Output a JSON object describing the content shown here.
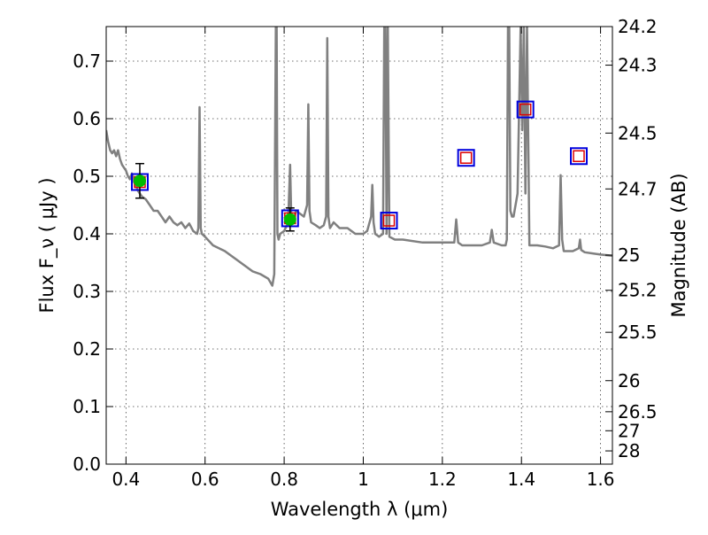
{
  "chart_data": {
    "type": "scatter",
    "title": "",
    "xlabel": "Wavelength  λ (μm)",
    "ylabel_left": "Flux  F_ν  ( μJy )",
    "ylabel_right": "Magnitude (AB)",
    "xlim": [
      0.35,
      1.63
    ],
    "ylim": [
      0.0,
      0.76
    ],
    "grid": true,
    "legend": "none",
    "colors": {
      "sed_line": "#808080",
      "observed_fill": "#00bb00",
      "model_box": "#0000dd",
      "model_inner": "#dd0000",
      "errorbar": "#000000"
    },
    "x_ticks": [
      {
        "value": 0.4,
        "label": "0.4"
      },
      {
        "value": 0.6,
        "label": "0.6"
      },
      {
        "value": 0.8,
        "label": "0.8"
      },
      {
        "value": 1.0,
        "label": "1"
      },
      {
        "value": 1.2,
        "label": "1.2"
      },
      {
        "value": 1.4,
        "label": "1.4"
      },
      {
        "value": 1.6,
        "label": "1.6"
      }
    ],
    "y_ticks": [
      {
        "value": 0.0,
        "label": "0.0"
      },
      {
        "value": 0.1,
        "label": "0.1"
      },
      {
        "value": 0.2,
        "label": "0.2"
      },
      {
        "value": 0.3,
        "label": "0.3"
      },
      {
        "value": 0.4,
        "label": "0.4"
      },
      {
        "value": 0.5,
        "label": "0.5"
      },
      {
        "value": 0.6,
        "label": "0.6"
      },
      {
        "value": 0.7,
        "label": "0.7"
      }
    ],
    "mag_ticks": [
      {
        "flux": 0.76,
        "label": "24.2"
      },
      {
        "flux": 0.693,
        "label": "24.3"
      },
      {
        "flux": 0.575,
        "label": "24.5"
      },
      {
        "flux": 0.478,
        "label": "24.7"
      },
      {
        "flux": 0.363,
        "label": "25"
      },
      {
        "flux": 0.302,
        "label": "25.2"
      },
      {
        "flux": 0.229,
        "label": "25.5"
      },
      {
        "flux": 0.145,
        "label": "26"
      },
      {
        "flux": 0.091,
        "label": "26.5"
      },
      {
        "flux": 0.058,
        "label": "27"
      },
      {
        "flux": 0.023,
        "label": "28"
      }
    ],
    "sed_model": {
      "x": [
        0.35,
        0.355,
        0.36,
        0.365,
        0.37,
        0.375,
        0.38,
        0.385,
        0.39,
        0.395,
        0.4,
        0.405,
        0.41,
        0.415,
        0.42,
        0.425,
        0.43,
        0.435,
        0.44,
        0.45,
        0.46,
        0.47,
        0.48,
        0.49,
        0.5,
        0.51,
        0.52,
        0.53,
        0.54,
        0.55,
        0.56,
        0.57,
        0.58,
        0.583,
        0.586,
        0.589,
        0.592,
        0.6,
        0.62,
        0.65,
        0.68,
        0.7,
        0.72,
        0.74,
        0.76,
        0.77,
        0.775,
        0.779,
        0.781,
        0.783,
        0.786,
        0.79,
        0.8,
        0.81,
        0.815,
        0.818,
        0.822,
        0.826,
        0.83,
        0.84,
        0.85,
        0.858,
        0.861,
        0.864,
        0.868,
        0.88,
        0.89,
        0.9,
        0.906,
        0.909,
        0.912,
        0.916,
        0.925,
        0.94,
        0.96,
        0.98,
        1.0,
        1.01,
        1.02,
        1.023,
        1.026,
        1.03,
        1.04,
        1.05,
        1.053,
        1.056,
        1.059,
        1.062,
        1.066,
        1.08,
        1.1,
        1.15,
        1.2,
        1.23,
        1.235,
        1.24,
        1.25,
        1.3,
        1.32,
        1.325,
        1.33,
        1.35,
        1.36,
        1.363,
        1.366,
        1.369,
        1.372,
        1.376,
        1.38,
        1.39,
        1.398,
        1.402,
        1.406,
        1.41,
        1.414,
        1.42,
        1.44,
        1.46,
        1.48,
        1.495,
        1.499,
        1.503,
        1.507,
        1.515,
        1.53,
        1.545,
        1.548,
        1.551,
        1.56,
        1.58,
        1.6,
        1.63
      ],
      "y": [
        0.58,
        0.56,
        0.545,
        0.54,
        0.545,
        0.535,
        0.545,
        0.53,
        0.52,
        0.515,
        0.51,
        0.5,
        0.495,
        0.505,
        0.49,
        0.485,
        0.475,
        0.47,
        0.465,
        0.46,
        0.45,
        0.44,
        0.44,
        0.43,
        0.42,
        0.43,
        0.42,
        0.415,
        0.42,
        0.41,
        0.418,
        0.405,
        0.4,
        0.41,
        0.62,
        0.41,
        0.4,
        0.395,
        0.38,
        0.37,
        0.355,
        0.345,
        0.335,
        0.33,
        0.322,
        0.31,
        0.33,
        0.76,
        0.76,
        0.4,
        0.39,
        0.4,
        0.405,
        0.42,
        0.52,
        0.43,
        0.42,
        0.43,
        0.44,
        0.435,
        0.43,
        0.45,
        0.625,
        0.44,
        0.42,
        0.415,
        0.41,
        0.415,
        0.43,
        0.74,
        0.43,
        0.41,
        0.42,
        0.41,
        0.41,
        0.4,
        0.4,
        0.405,
        0.43,
        0.485,
        0.42,
        0.4,
        0.395,
        0.4,
        0.76,
        0.76,
        0.4,
        0.76,
        0.395,
        0.39,
        0.39,
        0.385,
        0.385,
        0.385,
        0.425,
        0.385,
        0.38,
        0.38,
        0.385,
        0.407,
        0.385,
        0.38,
        0.38,
        0.39,
        0.76,
        0.76,
        0.44,
        0.43,
        0.43,
        0.47,
        0.76,
        0.58,
        0.76,
        0.47,
        0.76,
        0.38,
        0.38,
        0.378,
        0.375,
        0.38,
        0.502,
        0.39,
        0.37,
        0.37,
        0.37,
        0.375,
        0.39,
        0.372,
        0.368,
        0.366,
        0.364,
        0.362
      ]
    },
    "observed_points": [
      {
        "x": 0.435,
        "y": 0.492,
        "yerr_low": 0.03,
        "yerr_high": 0.03
      },
      {
        "x": 0.815,
        "y": 0.425,
        "yerr_low": 0.02,
        "yerr_high": 0.02
      }
    ],
    "model_boxes": [
      {
        "x": 0.435,
        "y": 0.49
      },
      {
        "x": 0.815,
        "y": 0.427
      },
      {
        "x": 1.065,
        "y": 0.423
      },
      {
        "x": 1.26,
        "y": 0.532
      },
      {
        "x": 1.41,
        "y": 0.616
      },
      {
        "x": 1.545,
        "y": 0.535
      }
    ]
  }
}
